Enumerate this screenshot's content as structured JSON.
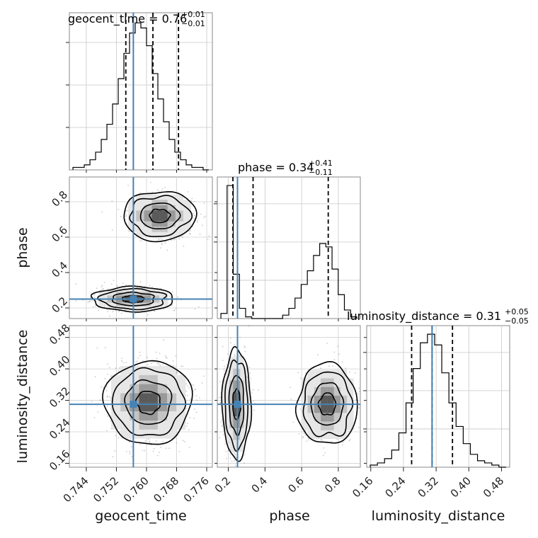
{
  "chart_data": {
    "type": "scatter",
    "subtype": "corner-plot",
    "parameters": [
      "geocent_time",
      "phase",
      "luminosity_distance"
    ],
    "truth": {
      "geocent_time": 0.7565,
      "phase": 0.25,
      "luminosity_distance": 0.31
    },
    "truth_color": "#4682b4",
    "grid": true,
    "panels": {
      "geocent_time": {
        "title": "geocent_time = 0.76",
        "title_plus": "+0.01",
        "title_minus": "−0.01",
        "xlim": [
          0.7395,
          0.7775
        ],
        "quantile_lines": [
          0.7545,
          0.7617,
          0.7685
        ],
        "hist": [
          1,
          1,
          2,
          4,
          7,
          12,
          18,
          26,
          36,
          46,
          54,
          58,
          56,
          49,
          38,
          28,
          19,
          12,
          7,
          4,
          2,
          1,
          1,
          0
        ],
        "hist_max": 62,
        "ticks": [
          0.744,
          0.752,
          0.76,
          0.768,
          0.776
        ],
        "tick_labels": [
          "0.744",
          "0.752",
          "0.760",
          "0.768",
          "0.776"
        ],
        "xlabel": "geocent_time"
      },
      "phase": {
        "title": "phase = 0.34",
        "title_plus": "+0.41",
        "title_minus": "−0.11",
        "xlim": [
          0.14,
          0.92
        ],
        "quantile_lines": [
          0.225,
          0.335,
          0.745
        ],
        "hist": [
          3,
          78,
          26,
          6,
          1,
          0,
          0,
          0,
          0,
          0,
          2,
          6,
          12,
          20,
          28,
          37,
          44,
          42,
          29,
          14,
          5,
          1
        ],
        "hist_max": 83,
        "ticks": [
          0.2,
          0.4,
          0.6,
          0.8
        ],
        "tick_labels": [
          "0.2",
          "0.4",
          "0.6",
          "0.8"
        ],
        "ylabel": "phase",
        "ylim": [
          0.14,
          0.94
        ],
        "yticks": [
          0.2,
          0.4,
          0.6,
          0.8
        ],
        "xlabel": "phase"
      },
      "luminosity_distance": {
        "title": "luminosity_distance = 0.31",
        "title_plus": "+0.05",
        "title_minus": "−0.05",
        "xlim": [
          0.15,
          0.5
        ],
        "quantile_lines": [
          0.26,
          0.31,
          0.36
        ],
        "hist": [
          1,
          2,
          4,
          8,
          16,
          30,
          46,
          58,
          62,
          57,
          44,
          30,
          19,
          11,
          6,
          3,
          2,
          1,
          0
        ],
        "hist_max": 66,
        "ticks": [
          0.16,
          0.24,
          0.32,
          0.4,
          0.48
        ],
        "tick_labels": [
          "0.16",
          "0.24",
          "0.32",
          "0.40",
          "0.48"
        ],
        "ylabel": "luminosity_distance",
        "ylim": [
          0.15,
          0.51
        ],
        "yticks": [
          0.16,
          0.24,
          0.32,
          0.4,
          0.48
        ],
        "xlabel": "luminosity_distance"
      }
    },
    "joint": [
      {
        "x": "geocent_time",
        "y": "phase",
        "modes": [
          {
            "cx": 0.7635,
            "cy": 0.72,
            "sx": 0.0038,
            "sy": 0.055,
            "w": 0.42
          },
          {
            "cx": 0.7565,
            "cy": 0.25,
            "sx": 0.0042,
            "sy": 0.028,
            "w": 0.58
          }
        ]
      },
      {
        "x": "geocent_time",
        "y": "luminosity_distance",
        "modes": [
          {
            "cx": 0.7605,
            "cy": 0.315,
            "sx": 0.0045,
            "sy": 0.042,
            "w": 1.0
          }
        ]
      },
      {
        "x": "phase",
        "y": "luminosity_distance",
        "modes": [
          {
            "cx": 0.245,
            "cy": 0.31,
            "sx": 0.03,
            "sy": 0.055,
            "w": 0.58
          },
          {
            "cx": 0.74,
            "cy": 0.31,
            "sx": 0.065,
            "sy": 0.04,
            "w": 0.42
          }
        ]
      }
    ]
  }
}
